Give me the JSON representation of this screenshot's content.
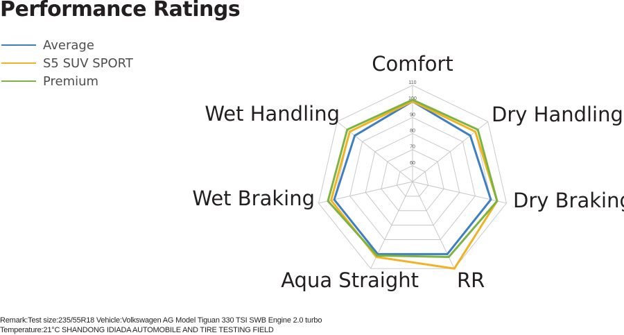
{
  "title": "Performance Ratings",
  "legend": [
    {
      "label": "Average",
      "color": "#3e7fc1"
    },
    {
      "label": "S5 SUV SPORT",
      "color": "#f0b323"
    },
    {
      "label": "Premium",
      "color": "#7cb342"
    }
  ],
  "remark": {
    "line1": "Remark:Test size:235/55R18 Vehicle:Volkswagen AG Model Tiguan 330 TSI SWB Engine 2.0 turbo",
    "line2": "Temperature:21°C SHANDONG IDIADA AUTOMOBILE AND TIRE TESTING FIELD"
  },
  "chart_data": {
    "type": "radar",
    "title": "Performance Ratings",
    "axes": [
      "Comfort",
      "Dry Handling",
      "Dry Braking",
      "RR",
      "Aqua Straight",
      "Wet Braking",
      "Wet Handling"
    ],
    "tick_labels": [
      "60",
      "70",
      "80",
      "90",
      "100",
      "110"
    ],
    "range": [
      50,
      110
    ],
    "grid": true,
    "legend_position": "top-left",
    "series": [
      {
        "name": "Average",
        "color": "#3e7fc1",
        "values": [
          100,
          96,
          100,
          100,
          100,
          100,
          96
        ]
      },
      {
        "name": "S5 SUV SPORT",
        "color": "#f0b323",
        "values": [
          100,
          100,
          104,
          110,
          102,
          102,
          100
        ]
      },
      {
        "name": "Premium",
        "color": "#7cb342",
        "values": [
          101,
          102,
          104,
          102,
          101,
          104,
          102
        ]
      }
    ]
  }
}
